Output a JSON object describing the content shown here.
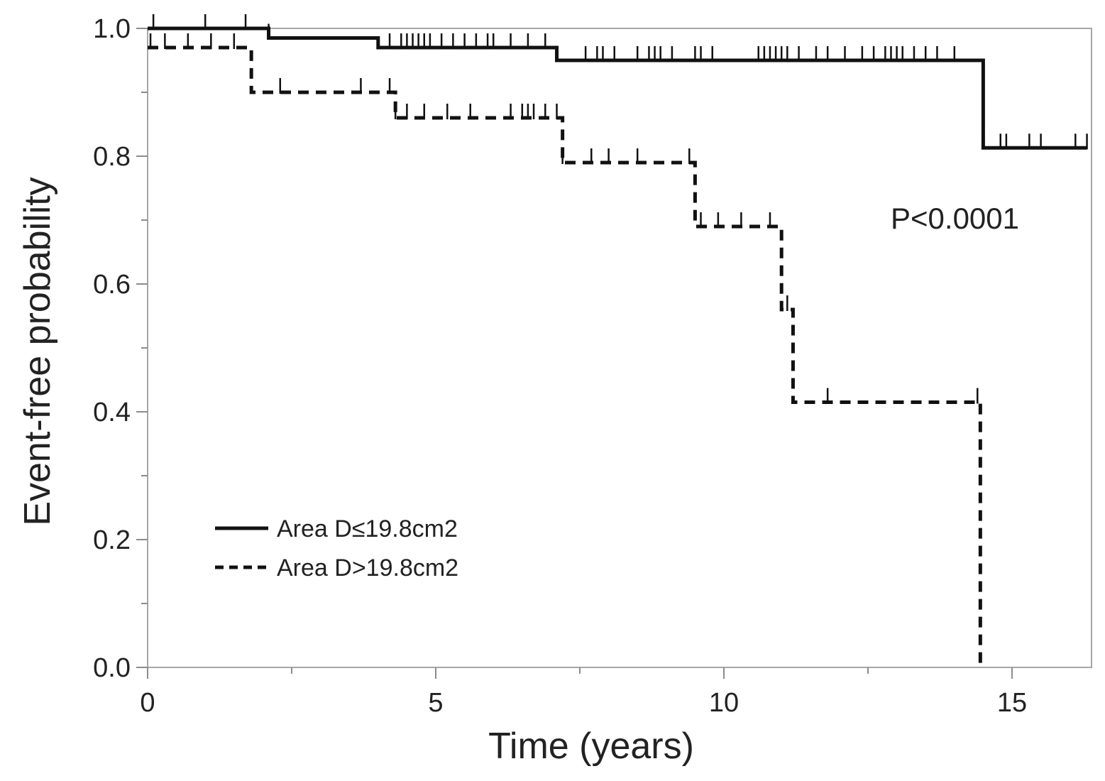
{
  "chart_data": {
    "type": "line",
    "xlabel": "Time (years)",
    "ylabel": "Event-free probability",
    "xlim": [
      0,
      16.4
    ],
    "ylim": [
      0,
      1.0
    ],
    "x_ticks": [
      {
        "value": 0,
        "label": "0"
      },
      {
        "value": 5,
        "label": "5"
      },
      {
        "value": 10,
        "label": "10"
      },
      {
        "value": 15,
        "label": "15"
      }
    ],
    "x_minor_ticks": [
      2.5,
      7.5,
      12.5
    ],
    "y_ticks": [
      {
        "value": 0.0,
        "label": "0.0"
      },
      {
        "value": 0.2,
        "label": "0.2"
      },
      {
        "value": 0.4,
        "label": "0.4"
      },
      {
        "value": 0.6,
        "label": "0.6"
      },
      {
        "value": 0.8,
        "label": "0.8"
      },
      {
        "value": 1.0,
        "label": "1.0"
      }
    ],
    "y_minor_ticks": [
      0.1,
      0.3,
      0.5,
      0.7,
      0.9
    ],
    "annotation": "P<0.0001",
    "legend_position": "bottom-left",
    "grid": false,
    "series": [
      {
        "name": "Area D≤19.8cm2",
        "line_style": "solid",
        "color": "#111111",
        "steps": [
          [
            0,
            1.0
          ],
          [
            2.1,
            0.985
          ],
          [
            4.0,
            0.97
          ],
          [
            7.1,
            0.95
          ],
          [
            14.5,
            0.813
          ],
          [
            16.3,
            0.813
          ]
        ],
        "censored": [
          0.1,
          1.0,
          1.7,
          2.1,
          4.2,
          4.4,
          4.5,
          4.6,
          4.7,
          4.8,
          4.9,
          5.1,
          5.3,
          5.5,
          5.7,
          5.9,
          6.0,
          6.3,
          6.6,
          6.9,
          7.6,
          7.8,
          7.9,
          8.1,
          8.5,
          8.7,
          8.8,
          8.9,
          9.1,
          9.5,
          9.6,
          9.8,
          10.6,
          10.7,
          10.8,
          10.9,
          11.0,
          11.1,
          11.3,
          11.6,
          11.8,
          12.1,
          12.4,
          12.6,
          12.8,
          12.9,
          13.0,
          13.1,
          13.3,
          13.5,
          13.7,
          14.0,
          14.5,
          14.8,
          14.9,
          15.3,
          15.5,
          16.1,
          16.3
        ]
      },
      {
        "name": "Area D>19.8cm2",
        "line_style": "dashed",
        "color": "#111111",
        "steps": [
          [
            0,
            0.97
          ],
          [
            1.8,
            0.9
          ],
          [
            4.3,
            0.86
          ],
          [
            7.2,
            0.79
          ],
          [
            9.5,
            0.69
          ],
          [
            11.0,
            0.56
          ],
          [
            11.2,
            0.415
          ],
          [
            14.45,
            0.0
          ]
        ],
        "censored": [
          0.05,
          0.3,
          0.7,
          1.1,
          1.5,
          2.3,
          3.7,
          4.2,
          4.3,
          4.5,
          4.8,
          5.2,
          5.6,
          6.3,
          6.5,
          6.6,
          6.7,
          6.9,
          7.1,
          7.2,
          7.7,
          8.0,
          8.5,
          9.4,
          9.6,
          9.9,
          10.3,
          10.8,
          11.1,
          11.8,
          14.4
        ]
      }
    ]
  }
}
